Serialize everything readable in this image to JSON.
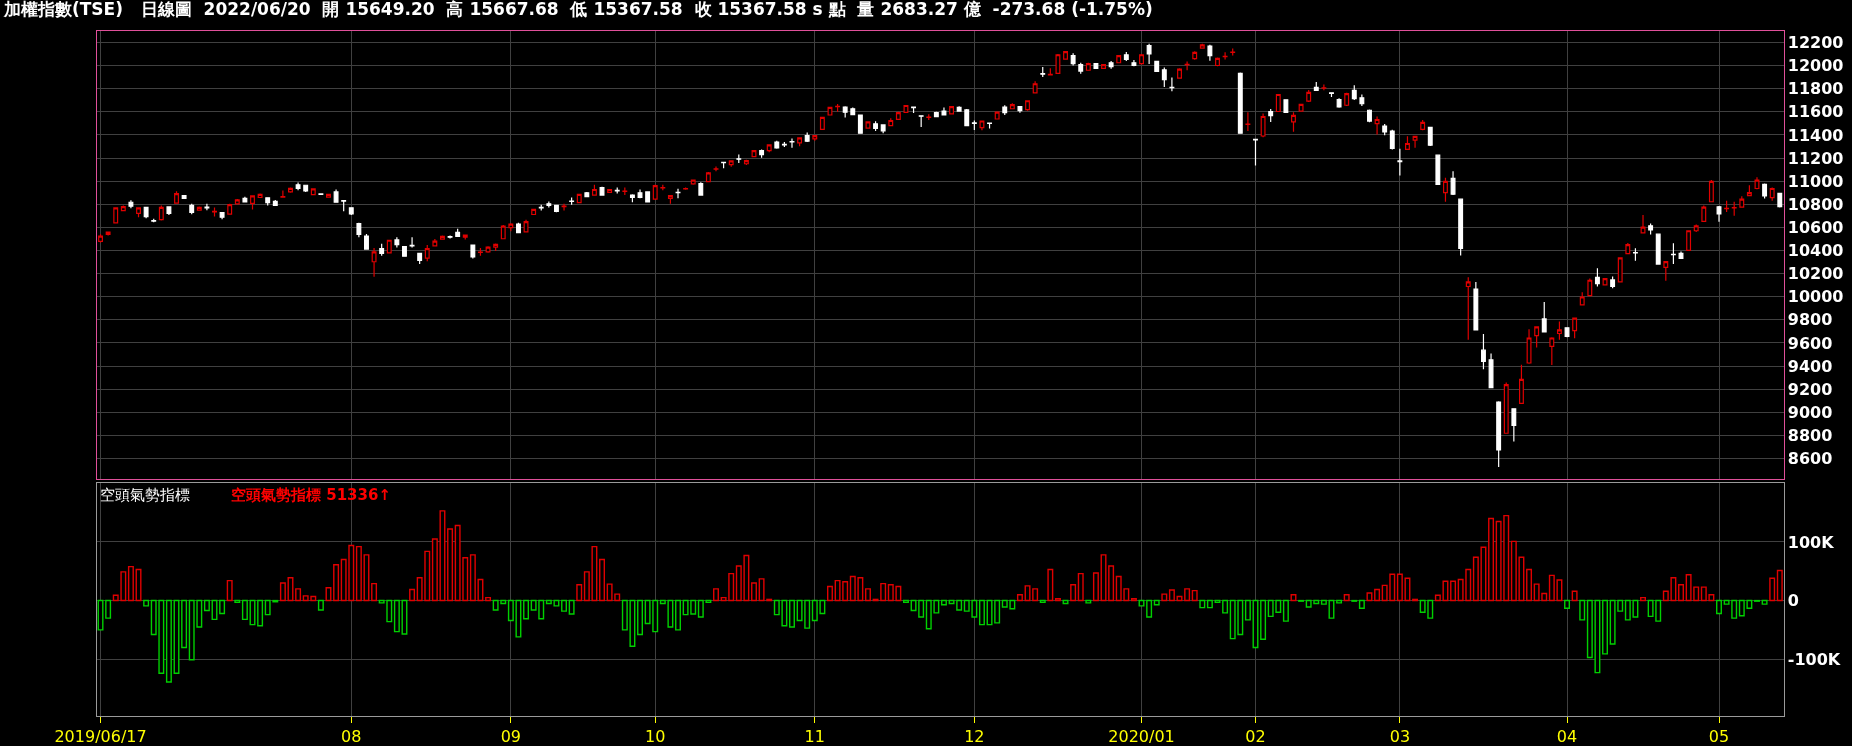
{
  "chart_data": [
    {
      "type": "candlestick",
      "title": "加權指數(TSE)   日線圖  2022/06/20  開 15649.20  高 15667.68  低 15367.58  收 15367.58 s 點  量 2683.27 億  -273.68 (-1.75%)",
      "categories": [
        "2019/06/17",
        null,
        null,
        null,
        null,
        null,
        null,
        null,
        null,
        null,
        null,
        null,
        null,
        null,
        null,
        null,
        null,
        null,
        null,
        null,
        null,
        null,
        null,
        null,
        null,
        null,
        null,
        null,
        null,
        null,
        null,
        null,
        null,
        "08",
        null,
        null,
        null,
        null,
        null,
        null,
        null,
        null,
        null,
        null,
        null,
        null,
        null,
        null,
        null,
        null,
        null,
        null,
        null,
        null,
        "09",
        null,
        null,
        null,
        null,
        null,
        null,
        null,
        null,
        null,
        null,
        null,
        null,
        null,
        null,
        null,
        null,
        null,
        null,
        "10",
        null,
        null,
        null,
        null,
        null,
        null,
        null,
        null,
        null,
        null,
        null,
        null,
        null,
        null,
        null,
        null,
        null,
        null,
        null,
        null,
        "11",
        null,
        null,
        null,
        null,
        null,
        null,
        null,
        null,
        null,
        null,
        null,
        null,
        null,
        null,
        null,
        null,
        null,
        null,
        null,
        null,
        "12",
        null,
        null,
        null,
        null,
        null,
        null,
        null,
        null,
        null,
        null,
        null,
        null,
        null,
        null,
        null,
        null,
        null,
        null,
        null,
        null,
        null,
        "2020/01",
        null,
        null,
        null,
        null,
        null,
        null,
        null,
        null,
        null,
        null,
        null,
        null,
        null,
        null,
        "02",
        null,
        null,
        null,
        null,
        null,
        null,
        null,
        null,
        null,
        null,
        null,
        null,
        null,
        null,
        null,
        null,
        null,
        null,
        "03",
        null,
        null,
        null,
        null,
        null,
        null,
        null,
        null,
        null,
        null,
        null,
        null,
        null,
        null,
        null,
        null,
        null,
        null,
        null,
        null,
        null,
        "04",
        null,
        null,
        null,
        null,
        null,
        null,
        null,
        null,
        null,
        null,
        null,
        null,
        null,
        null,
        null,
        null,
        null,
        null,
        null,
        "05",
        null,
        null,
        null,
        null,
        null,
        null,
        null,
        null
      ],
      "ohlc": [
        [
          10480,
          10540,
          10470,
          10525
        ],
        [
          10540,
          10565,
          10530,
          10560
        ],
        [
          10640,
          10775,
          10635,
          10770
        ],
        [
          10745,
          10790,
          10740,
          10780
        ],
        [
          10818,
          10835,
          10766,
          10784
        ],
        [
          10722,
          10770,
          10688,
          10770
        ],
        [
          10773,
          10775,
          10680,
          10694
        ],
        [
          10660,
          10675,
          10645,
          10655
        ],
        [
          10667,
          10790,
          10660,
          10773
        ],
        [
          10777,
          10780,
          10708,
          10722
        ],
        [
          10811,
          10914,
          10804,
          10893
        ],
        [
          10876,
          10880,
          10845,
          10852
        ],
        [
          10790,
          10804,
          10715,
          10729
        ],
        [
          10749,
          10780,
          10745,
          10773
        ],
        [
          10776,
          10804,
          10749,
          10770
        ],
        [
          10735,
          10773,
          10695,
          10740
        ],
        [
          10729,
          10729,
          10670,
          10688
        ],
        [
          10715,
          10805,
          10712,
          10797
        ],
        [
          10804,
          10845,
          10800,
          10838
        ],
        [
          10852,
          10866,
          10818,
          10821
        ],
        [
          10808,
          10875,
          10756,
          10873
        ],
        [
          10859,
          10893,
          10855,
          10886
        ],
        [
          10856,
          10860,
          10790,
          10815
        ],
        [
          10825,
          10838,
          10785,
          10790
        ],
        [
          10861,
          10920,
          10858,
          10866
        ],
        [
          10907,
          10945,
          10900,
          10938
        ],
        [
          10969,
          10989,
          10921,
          10938
        ],
        [
          10965,
          10969,
          10907,
          10917
        ],
        [
          10883,
          10940,
          10880,
          10934
        ],
        [
          10890,
          10893,
          10880,
          10886
        ],
        [
          10863,
          10890,
          10860,
          10886
        ],
        [
          10907,
          10928,
          10815,
          10818
        ],
        [
          10832,
          10838,
          10740,
          10828
        ],
        [
          10770,
          10775,
          10708,
          10718
        ],
        [
          10633,
          10640,
          10516,
          10540
        ],
        [
          10526,
          10543,
          10410,
          10413
        ],
        [
          10303,
          10423,
          10173,
          10389
        ],
        [
          10417,
          10458,
          10355,
          10375
        ],
        [
          10379,
          10493,
          10375,
          10489
        ],
        [
          10492,
          10516,
          10427,
          10451
        ],
        [
          10434,
          10434,
          10348,
          10351
        ],
        [
          10444,
          10516,
          10427,
          10440
        ],
        [
          10375,
          10375,
          10283,
          10314
        ],
        [
          10334,
          10448,
          10307,
          10417
        ],
        [
          10441,
          10500,
          10437,
          10482
        ],
        [
          10499,
          10530,
          10495,
          10523
        ],
        [
          10520,
          10530,
          10505,
          10516
        ],
        [
          10557,
          10588,
          10518,
          10523
        ],
        [
          10516,
          10533,
          10495,
          10533
        ],
        [
          10448,
          10448,
          10331,
          10345
        ],
        [
          10383,
          10423,
          10355,
          10386
        ],
        [
          10389,
          10437,
          10380,
          10430
        ],
        [
          10430,
          10461,
          10396,
          10454
        ],
        [
          10502,
          10620,
          10500,
          10612
        ],
        [
          10598,
          10636,
          10567,
          10629
        ],
        [
          10629,
          10640,
          10550,
          10554
        ],
        [
          10561,
          10667,
          10557,
          10650
        ],
        [
          10712,
          10760,
          10708,
          10756
        ],
        [
          10773,
          10797,
          10746,
          10770
        ],
        [
          10804,
          10825,
          10773,
          10790
        ],
        [
          10790,
          10794,
          10732,
          10739
        ],
        [
          10780,
          10804,
          10746,
          10784
        ],
        [
          10828,
          10859,
          10797,
          10825
        ],
        [
          10814,
          10890,
          10810,
          10886
        ],
        [
          10900,
          10907,
          10862,
          10866
        ],
        [
          10880,
          10969,
          10876,
          10928
        ],
        [
          10945,
          10952,
          10873,
          10880
        ],
        [
          10904,
          10931,
          10900,
          10928
        ],
        [
          10921,
          10945,
          10893,
          10917
        ],
        [
          10912,
          10945,
          10880,
          10914
        ],
        [
          10880,
          10886,
          10818,
          10859
        ],
        [
          10900,
          10928,
          10852,
          10859
        ],
        [
          10907,
          10914,
          10818,
          10821
        ],
        [
          10845,
          10969,
          10842,
          10962
        ],
        [
          10942,
          10969,
          10921,
          10945
        ],
        [
          10852,
          10880,
          10804,
          10876
        ],
        [
          10903,
          10935,
          10852,
          10900
        ],
        [
          10933,
          10945,
          10925,
          10937
        ],
        [
          10976,
          11015,
          10970,
          11010
        ],
        [
          10979,
          10990,
          10876,
          10880
        ],
        [
          10996,
          11080,
          10990,
          11072
        ],
        [
          11105,
          11127,
          11085,
          11107
        ],
        [
          11163,
          11165,
          11113,
          11160
        ],
        [
          11144,
          11180,
          11125,
          11175
        ],
        [
          11194,
          11230,
          11158,
          11190
        ],
        [
          11151,
          11185,
          11140,
          11178
        ],
        [
          11212,
          11270,
          11208,
          11264
        ],
        [
          11264,
          11275,
          11202,
          11230
        ],
        [
          11264,
          11320,
          11250,
          11315
        ],
        [
          11339,
          11350,
          11280,
          11288
        ],
        [
          11318,
          11339,
          11295,
          11315
        ],
        [
          11342,
          11370,
          11290,
          11339
        ],
        [
          11332,
          11380,
          11302,
          11374
        ],
        [
          11394,
          11422,
          11340,
          11346
        ],
        [
          11367,
          11400,
          11350,
          11394
        ],
        [
          11449,
          11555,
          11445,
          11552
        ],
        [
          11573,
          11645,
          11570,
          11638
        ],
        [
          11645,
          11669,
          11600,
          11648
        ],
        [
          11641,
          11648,
          11552,
          11597
        ],
        [
          11627,
          11638,
          11573,
          11576
        ],
        [
          11573,
          11576,
          11410,
          11415
        ],
        [
          11459,
          11518,
          11455,
          11514
        ],
        [
          11497,
          11518,
          11435,
          11456
        ],
        [
          11487,
          11490,
          11415,
          11435
        ],
        [
          11480,
          11545,
          11475,
          11525
        ],
        [
          11535,
          11600,
          11530,
          11593
        ],
        [
          11596,
          11660,
          11590,
          11655
        ],
        [
          11641,
          11645,
          11590,
          11637
        ],
        [
          11566,
          11570,
          11470,
          11562
        ],
        [
          11553,
          11580,
          11530,
          11555
        ],
        [
          11593,
          11600,
          11555,
          11559
        ],
        [
          11607,
          11638,
          11570,
          11573
        ],
        [
          11583,
          11650,
          11580,
          11645
        ],
        [
          11638,
          11648,
          11600,
          11607
        ],
        [
          11617,
          11625,
          11475,
          11480
        ],
        [
          11504,
          11525,
          11442,
          11500
        ],
        [
          11463,
          11525,
          11440,
          11521
        ],
        [
          11502,
          11505,
          11455,
          11500
        ],
        [
          11538,
          11600,
          11535,
          11597
        ],
        [
          11641,
          11658,
          11572,
          11593
        ],
        [
          11627,
          11675,
          11625,
          11662
        ],
        [
          11645,
          11648,
          11593,
          11610
        ],
        [
          11620,
          11700,
          11610,
          11696
        ],
        [
          11765,
          11865,
          11760,
          11843
        ],
        [
          11930,
          11988,
          11902,
          11926
        ],
        [
          11920,
          11977,
          11918,
          11925
        ],
        [
          11933,
          12100,
          11930,
          12094
        ],
        [
          12056,
          12125,
          12050,
          12121
        ],
        [
          12087,
          12108,
          12001,
          12018
        ],
        [
          12008,
          12025,
          11930,
          11953
        ],
        [
          11960,
          12025,
          11955,
          12018
        ],
        [
          12018,
          12022,
          11973,
          11977
        ],
        [
          11977,
          12015,
          11970,
          12008
        ],
        [
          12025,
          12039,
          11974,
          11991
        ],
        [
          12025,
          12090,
          12020,
          12087
        ],
        [
          12094,
          12118,
          12039,
          12053
        ],
        [
          12025,
          12049,
          11995,
          12001
        ],
        [
          12018,
          12100,
          12010,
          12094
        ],
        [
          12173,
          12190,
          12015,
          12101
        ],
        [
          12036,
          12040,
          11945,
          11950
        ],
        [
          11963,
          11984,
          11816,
          11878
        ],
        [
          11813,
          11898,
          11778,
          11810
        ],
        [
          11892,
          11977,
          11888,
          11970
        ],
        [
          12008,
          12035,
          11960,
          12012
        ],
        [
          12060,
          12125,
          12050,
          12115
        ],
        [
          12152,
          12190,
          12145,
          12180
        ],
        [
          12170,
          12180,
          12042,
          12087
        ],
        [
          12001,
          12070,
          11995,
          12063
        ],
        [
          12077,
          12115,
          12052,
          12080
        ],
        [
          12115,
          12148,
          12087,
          12118
        ],
        [
          11933,
          11940,
          11410,
          11415
        ],
        [
          11491,
          11596,
          11434,
          11495
        ],
        [
          11362,
          11365,
          11135,
          11358
        ],
        [
          11391,
          11585,
          11380,
          11560
        ],
        [
          11603,
          11625,
          11513,
          11567
        ],
        [
          11603,
          11755,
          11598,
          11750
        ],
        [
          11704,
          11710,
          11590,
          11596
        ],
        [
          11513,
          11596,
          11427,
          11570
        ],
        [
          11606,
          11670,
          11600,
          11664
        ],
        [
          11693,
          11790,
          11685,
          11768
        ],
        [
          11811,
          11858,
          11780,
          11786
        ],
        [
          11805,
          11837,
          11786,
          11808
        ],
        [
          11765,
          11770,
          11729,
          11760
        ],
        [
          11707,
          11718,
          11635,
          11642
        ],
        [
          11657,
          11765,
          11650,
          11758
        ],
        [
          11786,
          11830,
          11703,
          11714
        ],
        [
          11722,
          11750,
          11650,
          11671
        ],
        [
          11614,
          11620,
          11510,
          11520
        ],
        [
          11499,
          11560,
          11405,
          11534
        ],
        [
          11477,
          11495,
          11398,
          11427
        ],
        [
          11434,
          11445,
          11275,
          11283
        ],
        [
          11175,
          11280,
          11049,
          11170
        ],
        [
          11276,
          11390,
          11270,
          11326
        ],
        [
          11355,
          11390,
          11290,
          11387
        ],
        [
          11448,
          11530,
          11440,
          11509
        ],
        [
          11466,
          11470,
          11305,
          11312
        ],
        [
          11225,
          11230,
          10970,
          10973
        ],
        [
          10901,
          11030,
          10822,
          10999
        ],
        [
          11024,
          11085,
          10880,
          10887
        ],
        [
          10844,
          10850,
          10358,
          10419
        ],
        [
          10089,
          10168,
          9628,
          10128
        ],
        [
          10067,
          10128,
          9710,
          9714
        ],
        [
          9538,
          9678,
          9373,
          9441
        ],
        [
          9455,
          9510,
          9210,
          9214
        ],
        [
          9089,
          9095,
          8527,
          8675
        ],
        [
          8819,
          9258,
          8815,
          9240
        ],
        [
          9031,
          9035,
          8747,
          8887
        ],
        [
          9078,
          9412,
          9075,
          9286
        ],
        [
          9427,
          9718,
          9420,
          9643
        ],
        [
          9664,
          9745,
          9560,
          9740
        ],
        [
          9808,
          9955,
          9690,
          9696
        ],
        [
          9571,
          9650,
          9409,
          9643
        ],
        [
          9682,
          9786,
          9628,
          9714
        ],
        [
          9732,
          9735,
          9650,
          9657
        ],
        [
          9707,
          9820,
          9642,
          9815
        ],
        [
          9930,
          10038,
          9925,
          9998
        ],
        [
          10009,
          10157,
          10005,
          10143
        ],
        [
          10168,
          10247,
          10089,
          10114
        ],
        [
          10103,
          10160,
          10098,
          10157
        ],
        [
          10146,
          10175,
          10074,
          10089
        ],
        [
          10128,
          10340,
          10125,
          10337
        ],
        [
          10373,
          10466,
          10370,
          10452
        ],
        [
          10382,
          10420,
          10312,
          10380
        ],
        [
          10553,
          10707,
          10550,
          10603
        ],
        [
          10614,
          10635,
          10538,
          10578
        ],
        [
          10542,
          10546,
          10280,
          10283
        ],
        [
          10254,
          10310,
          10139,
          10304
        ],
        [
          10368,
          10463,
          10283,
          10365
        ],
        [
          10376,
          10391,
          10328,
          10333
        ],
        [
          10401,
          10575,
          10398,
          10571
        ],
        [
          10571,
          10625,
          10560,
          10614
        ],
        [
          10653,
          10790,
          10650,
          10776
        ],
        [
          10822,
          11010,
          10818,
          10999
        ],
        [
          10779,
          10785,
          10650,
          10718
        ],
        [
          10762,
          10830,
          10733,
          10765
        ],
        [
          10769,
          10822,
          10700,
          10772
        ],
        [
          10775,
          10870,
          10770,
          10844
        ],
        [
          10876,
          10966,
          10870,
          10901
        ],
        [
          10937,
          11035,
          10930,
          11009
        ],
        [
          10973,
          10980,
          10851,
          10873
        ],
        [
          10858,
          10945,
          10830,
          10937
        ],
        [
          10894,
          10900,
          10772,
          10779
        ]
      ],
      "colors": [
        "#e00000",
        "#e00000",
        "#e00000",
        "#e00000",
        "#ffffff",
        "#e00000",
        "#ffffff",
        "#ffffff",
        "#e00000",
        "#ffffff",
        "#e00000",
        "#ffffff",
        "#ffffff",
        "#e00000",
        "#ffffff",
        "#e00000",
        "#ffffff",
        "#e00000",
        "#e00000",
        "#ffffff",
        "#e00000",
        "#e00000",
        "#ffffff",
        "#ffffff",
        "#e00000",
        "#e00000",
        "#ffffff",
        "#ffffff",
        "#e00000",
        "#ffffff",
        "#e00000",
        "#ffffff",
        "#ffffff",
        "#ffffff",
        "#ffffff",
        "#ffffff",
        "#e00000",
        "#ffffff",
        "#e00000",
        "#ffffff",
        "#ffffff",
        "#ffffff",
        "#ffffff",
        "#e00000",
        "#e00000",
        "#e00000",
        "#ffffff",
        "#ffffff",
        "#e00000",
        "#ffffff",
        "#e00000",
        "#e00000",
        "#e00000",
        "#e00000",
        "#e00000",
        "#ffffff",
        "#e00000",
        "#e00000",
        "#ffffff",
        "#ffffff",
        "#ffffff",
        "#e00000",
        "#ffffff",
        "#e00000",
        "#ffffff",
        "#e00000",
        "#ffffff",
        "#e00000",
        "#ffffff",
        "#e00000",
        "#ffffff",
        "#ffffff",
        "#ffffff",
        "#e00000",
        "#e00000",
        "#e00000",
        "#ffffff",
        "#e00000",
        "#e00000",
        "#ffffff",
        "#e00000",
        "#e00000",
        "#ffffff",
        "#e00000",
        "#ffffff",
        "#e00000",
        "#e00000",
        "#ffffff",
        "#e00000",
        "#ffffff",
        "#ffffff",
        "#ffffff",
        "#e00000",
        "#ffffff",
        "#e00000",
        "#e00000",
        "#e00000",
        "#e00000",
        "#ffffff",
        "#ffffff",
        "#ffffff",
        "#e00000",
        "#ffffff",
        "#ffffff",
        "#e00000",
        "#e00000",
        "#e00000",
        "#ffffff",
        "#ffffff",
        "#e00000",
        "#ffffff",
        "#ffffff",
        "#e00000",
        "#ffffff",
        "#ffffff",
        "#ffffff",
        "#e00000",
        "#ffffff",
        "#e00000",
        "#ffffff",
        "#e00000",
        "#ffffff",
        "#e00000",
        "#e00000",
        "#ffffff",
        "#e00000",
        "#e00000",
        "#e00000",
        "#ffffff",
        "#ffffff",
        "#e00000",
        "#ffffff",
        "#e00000",
        "#ffffff",
        "#e00000",
        "#ffffff",
        "#ffffff",
        "#e00000",
        "#ffffff",
        "#ffffff",
        "#ffffff",
        "#ffffff",
        "#e00000",
        "#e00000",
        "#e00000",
        "#e00000",
        "#ffffff",
        "#e00000",
        "#e00000",
        "#e00000",
        "#ffffff",
        "#e00000",
        "#ffffff",
        "#e00000",
        "#ffffff",
        "#e00000",
        "#ffffff",
        "#e00000",
        "#e00000",
        "#e00000",
        "#ffffff",
        "#e00000",
        "#ffffff",
        "#ffffff",
        "#e00000",
        "#ffffff",
        "#ffffff",
        "#ffffff",
        "#e00000",
        "#ffffff",
        "#ffffff",
        "#ffffff",
        "#e00000",
        "#e00000",
        "#e00000",
        "#ffffff",
        "#ffffff",
        "#e00000",
        "#ffffff",
        "#ffffff",
        "#e00000",
        "#ffffff",
        "#ffffff",
        "#ffffff",
        "#ffffff",
        "#e00000",
        "#ffffff",
        "#e00000",
        "#e00000",
        "#e00000",
        "#ffffff",
        "#e00000",
        "#e00000",
        "#ffffff",
        "#e00000",
        "#e00000",
        "#e00000",
        "#ffffff",
        "#e00000",
        "#ffffff",
        "#e00000",
        "#e00000",
        "#ffffff",
        "#e00000",
        "#ffffff",
        "#ffffff",
        "#e00000",
        "#ffffff",
        "#ffffff",
        "#e00000",
        "#e00000",
        "#e00000",
        "#e00000",
        "#ffffff",
        "#e00000",
        "#e00000",
        "#e00000",
        "#e00000",
        "#e00000",
        "#ffffff",
        "#e00000",
        "#ffffff"
      ],
      "ylim": [
        8420,
        12300
      ],
      "yticks": [
        8600,
        8800,
        9000,
        9200,
        9400,
        9600,
        9800,
        10000,
        10200,
        10400,
        10600,
        10800,
        11000,
        11200,
        11400,
        11600,
        11800,
        12000,
        12200
      ],
      "grid": true,
      "tick_labels": "y"
    },
    {
      "type": "bar",
      "title": "空頭氣勢指標",
      "annotations": [
        "空頭氣勢指標 51336↑"
      ],
      "categories": [
        "2019/06/17",
        null,
        null,
        null,
        null,
        null,
        null,
        null,
        null,
        null,
        null,
        null,
        null,
        null,
        null,
        null,
        null,
        null,
        null,
        null,
        null,
        null,
        null,
        null,
        null,
        null,
        null,
        null,
        null,
        null,
        null,
        null,
        null,
        "08",
        null,
        null,
        null,
        null,
        null,
        null,
        null,
        null,
        null,
        null,
        null,
        null,
        null,
        null,
        null,
        null,
        null,
        null,
        null,
        null,
        "09",
        null,
        null,
        null,
        null,
        null,
        null,
        null,
        null,
        null,
        null,
        null,
        null,
        null,
        null,
        null,
        null,
        null,
        null,
        "10",
        null,
        null,
        null,
        null,
        null,
        null,
        null,
        null,
        null,
        null,
        null,
        null,
        null,
        null,
        null,
        null,
        null,
        null,
        null,
        null,
        "11",
        null,
        null,
        null,
        null,
        null,
        null,
        null,
        null,
        null,
        null,
        null,
        null,
        null,
        null,
        null,
        null,
        null,
        null,
        null,
        null,
        "12",
        null,
        null,
        null,
        null,
        null,
        null,
        null,
        null,
        null,
        null,
        null,
        null,
        null,
        null,
        null,
        null,
        null,
        null,
        null,
        null,
        null,
        "2020/01",
        null,
        null,
        null,
        null,
        null,
        null,
        null,
        null,
        null,
        null,
        null,
        null,
        null,
        null,
        "02",
        null,
        null,
        null,
        null,
        null,
        null,
        null,
        null,
        null,
        null,
        null,
        null,
        null,
        null,
        null,
        null,
        null,
        null,
        "03",
        null,
        null,
        null,
        null,
        null,
        null,
        null,
        null,
        null,
        null,
        null,
        null,
        null,
        null,
        null,
        null,
        null,
        null,
        null,
        null,
        null,
        "04",
        null,
        null,
        null,
        null,
        null,
        null,
        null,
        null,
        null,
        null,
        null,
        null,
        null,
        null,
        null,
        null,
        null,
        null,
        null,
        "05",
        null,
        null,
        null,
        null,
        null,
        null,
        null,
        null
      ],
      "values": [
        -50000,
        -30000,
        9000,
        49000,
        58000,
        53000,
        -9000,
        -58000,
        -124000,
        -139000,
        -124000,
        -80000,
        -101000,
        -45000,
        -17000,
        -32000,
        -22000,
        34000,
        -3000,
        -32000,
        -41000,
        -43000,
        -24000,
        -2000,
        30000,
        39000,
        20000,
        8000,
        7000,
        -16000,
        22000,
        61000,
        70000,
        94000,
        92000,
        78000,
        29000,
        -4000,
        -36000,
        -53000,
        -57000,
        19000,
        39000,
        84000,
        105000,
        153000,
        122000,
        128000,
        73000,
        78000,
        36000,
        5000,
        -16000,
        -5000,
        -34000,
        -62000,
        -31000,
        -16000,
        -31000,
        -5000,
        -9000,
        -18000,
        -23000,
        27000,
        49000,
        92000,
        70000,
        28000,
        11000,
        -50000,
        -78000,
        -58000,
        -39000,
        -53000,
        -5000,
        -45000,
        -50000,
        -24000,
        -23000,
        -28000,
        -3000,
        20000,
        5000,
        46000,
        59000,
        77000,
        30000,
        37000,
        2000,
        -24000,
        -43000,
        -45000,
        -34000,
        -47000,
        -34000,
        -22000,
        24000,
        34000,
        32000,
        41000,
        39000,
        20000,
        2000,
        29000,
        27000,
        24000,
        -3000,
        -17000,
        -28000,
        -48000,
        -21000,
        -7000,
        -5000,
        -16000,
        -18000,
        -28000,
        -41000,
        -41000,
        -38000,
        -11000,
        -14000,
        10000,
        25000,
        20000,
        -3000,
        53000,
        3000,
        -5000,
        27000,
        46000,
        -4000,
        47000,
        78000,
        59000,
        41000,
        20000,
        3000,
        -9000,
        -28000,
        -7000,
        11000,
        18000,
        7000,
        20000,
        17000,
        -12000,
        -12000,
        -3000,
        -21000,
        -65000,
        -58000,
        -33000,
        -80000,
        -66000,
        -27000,
        -20000,
        -35000,
        10000,
        -1000,
        -11000,
        -5000,
        -6000,
        -30000,
        -4000,
        10000,
        -1000,
        -13000,
        13000,
        19000,
        26000,
        45000,
        45000,
        38000,
        2000,
        -20000,
        -30000,
        9000,
        33000,
        33000,
        36000,
        53000,
        74000,
        91000,
        140000,
        135000,
        145000,
        101000,
        74000,
        53000,
        28000,
        12000,
        43000,
        35000,
        -13000,
        16000,
        -33000,
        -97000,
        -123000,
        -91000,
        -74000,
        -18000,
        -33000,
        -28000,
        5000,
        -27000,
        -35000,
        16000,
        39000,
        27000,
        44000,
        23000,
        23000,
        10000,
        -22000,
        -6000,
        -30000,
        -26000,
        -13000,
        -1000,
        -6000,
        38000,
        51336
      ],
      "colors": [
        "#00d000",
        "#00d000",
        "#e00000",
        "#e00000",
        "#e00000",
        "#e00000",
        "#00d000",
        "#00d000",
        "#00d000",
        "#00d000",
        "#00d000",
        "#00d000",
        "#00d000",
        "#00d000",
        "#00d000",
        "#00d000",
        "#00d000",
        "#e00000",
        "#00d000",
        "#00d000",
        "#00d000",
        "#00d000",
        "#00d000",
        "#00d000",
        "#e00000",
        "#e00000",
        "#e00000",
        "#e00000",
        "#e00000",
        "#00d000",
        "#e00000",
        "#e00000",
        "#e00000",
        "#e00000",
        "#e00000",
        "#e00000",
        "#e00000",
        "#00d000",
        "#00d000",
        "#00d000",
        "#00d000",
        "#e00000",
        "#e00000",
        "#e00000",
        "#e00000",
        "#e00000",
        "#e00000",
        "#e00000",
        "#e00000",
        "#e00000",
        "#e00000",
        "#e00000",
        "#00d000",
        "#00d000",
        "#00d000",
        "#00d000",
        "#00d000",
        "#00d000",
        "#00d000",
        "#00d000",
        "#00d000",
        "#00d000",
        "#00d000",
        "#e00000",
        "#e00000",
        "#e00000",
        "#e00000",
        "#e00000",
        "#e00000",
        "#00d000",
        "#00d000",
        "#00d000",
        "#00d000",
        "#00d000",
        "#00d000",
        "#00d000",
        "#00d000",
        "#00d000",
        "#00d000",
        "#00d000",
        "#00d000",
        "#e00000",
        "#e00000",
        "#e00000",
        "#e00000",
        "#e00000",
        "#e00000",
        "#e00000",
        "#e00000",
        "#00d000",
        "#00d000",
        "#00d000",
        "#00d000",
        "#00d000",
        "#00d000",
        "#00d000",
        "#e00000",
        "#e00000",
        "#e00000",
        "#e00000",
        "#e00000",
        "#e00000",
        "#e00000",
        "#e00000",
        "#e00000",
        "#e00000",
        "#00d000",
        "#00d000",
        "#00d000",
        "#00d000",
        "#00d000",
        "#00d000",
        "#00d000",
        "#00d000",
        "#00d000",
        "#00d000",
        "#00d000",
        "#00d000",
        "#00d000",
        "#00d000",
        "#00d000",
        "#e00000",
        "#e00000",
        "#e00000",
        "#00d000",
        "#e00000",
        "#e00000",
        "#00d000",
        "#e00000",
        "#e00000",
        "#00d000",
        "#e00000",
        "#e00000",
        "#e00000",
        "#e00000",
        "#e00000",
        "#e00000",
        "#00d000",
        "#00d000",
        "#00d000",
        "#e00000",
        "#e00000",
        "#e00000",
        "#e00000",
        "#e00000",
        "#00d000",
        "#00d000",
        "#00d000",
        "#00d000",
        "#00d000",
        "#00d000",
        "#00d000",
        "#00d000",
        "#00d000",
        "#00d000",
        "#00d000",
        "#00d000",
        "#e00000",
        "#00d000",
        "#00d000",
        "#00d000",
        "#00d000",
        "#00d000",
        "#00d000",
        "#e00000",
        "#00d000",
        "#00d000",
        "#e00000",
        "#e00000",
        "#e00000",
        "#e00000",
        "#e00000",
        "#e00000",
        "#e00000",
        "#00d000",
        "#00d000",
        "#e00000",
        "#e00000",
        "#e00000",
        "#e00000",
        "#e00000",
        "#e00000",
        "#e00000",
        "#e00000",
        "#e00000",
        "#e00000",
        "#e00000",
        "#e00000",
        "#e00000",
        "#e00000",
        "#e00000",
        "#e00000",
        "#e00000",
        "#00d000",
        "#e00000",
        "#00d000",
        "#00d000",
        "#00d000",
        "#00d000",
        "#00d000",
        "#00d000",
        "#00d000",
        "#00d000",
        "#e00000",
        "#00d000",
        "#00d000",
        "#e00000",
        "#e00000",
        "#e00000",
        "#e00000",
        "#e00000",
        "#e00000",
        "#e00000",
        "#00d000",
        "#00d000",
        "#00d000",
        "#00d000",
        "#00d000",
        "#00d000",
        "#00d000",
        "#e00000",
        "#e00000"
      ],
      "ylim": [
        -197000,
        200000
      ],
      "yticks": [
        {
          "value": 100000,
          "label": "100K"
        },
        0,
        {
          "value": -100000,
          "label": "-100K"
        }
      ],
      "grid": true
    }
  ]
}
